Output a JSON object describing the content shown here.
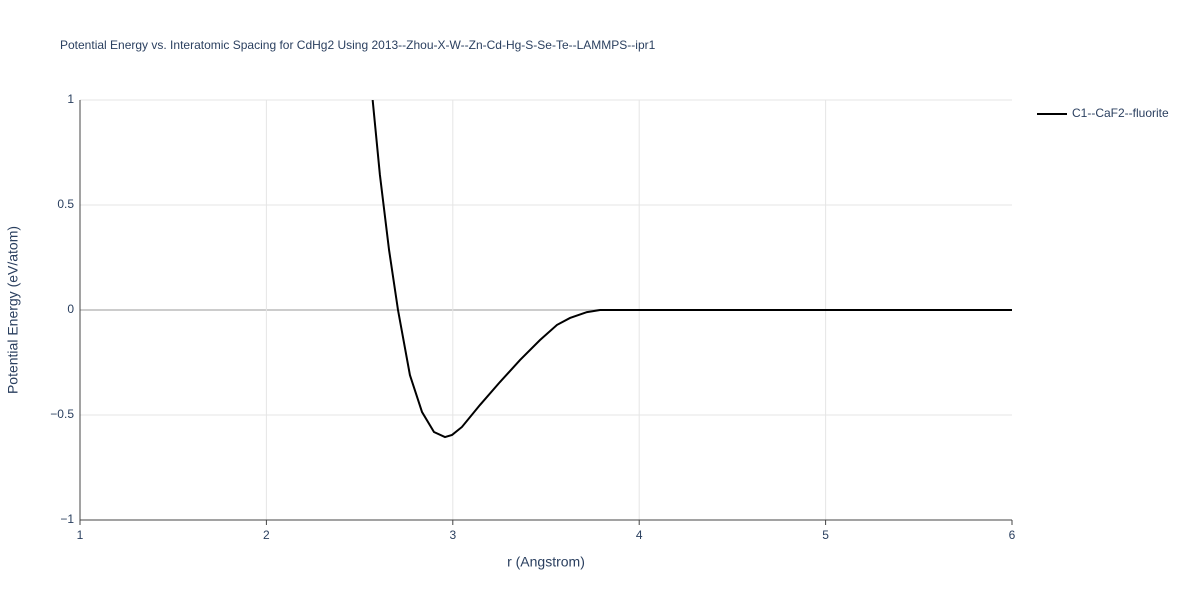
{
  "chart_data": {
    "type": "line",
    "title": "Potential Energy vs. Interatomic Spacing for CdHg2 Using 2013--Zhou-X-W--Zn-Cd-Hg-S-Se-Te--LAMMPS--ipr1",
    "x_label": "r (Angstrom)",
    "y_label": "Potential Energy (eV/atom)",
    "x": [
      2.57,
      2.609,
      2.658,
      2.706,
      2.77,
      2.835,
      2.899,
      2.958,
      2.996,
      3.049,
      3.146,
      3.253,
      3.361,
      3.468,
      3.559,
      3.629,
      3.72,
      3.79,
      6
    ],
    "series": [
      {
        "name": "C1--CaF2--fluorite",
        "color": "#000000",
        "values": [
          1.0,
          0.643,
          0.286,
          0,
          -0.31,
          -0.486,
          -0.581,
          -0.605,
          -0.595,
          -0.557,
          -0.452,
          -0.343,
          -0.238,
          -0.143,
          -0.071,
          -0.038,
          -0.01,
          0,
          0
        ]
      }
    ],
    "xlim": [
      1,
      6
    ],
    "xticks": [
      1,
      2,
      3,
      4,
      5,
      6
    ],
    "ylim": [
      -1,
      1
    ],
    "yticks": [
      {
        "value": -1,
        "label": "−1"
      },
      {
        "value": -0.5,
        "label": "−0.5"
      },
      0,
      0.5,
      1
    ],
    "grid": true,
    "legend": "right"
  }
}
